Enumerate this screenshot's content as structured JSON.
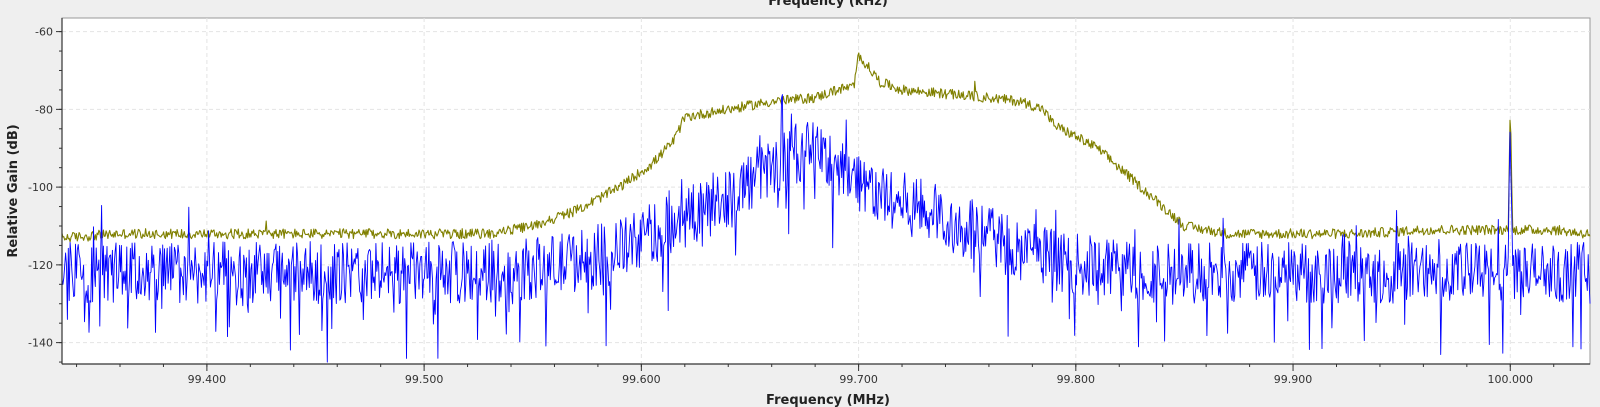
{
  "chart_data": {
    "type": "line",
    "title": "",
    "top_axis_label": "Frequency (kHz)",
    "xlabel": "Frequency (MHz)",
    "ylabel": "Relative Gain (dB)",
    "xlim": [
      99.3333,
      100.0367
    ],
    "ylim": [
      -145.5,
      -56.5
    ],
    "grid": true,
    "x_ticks": [
      99.4,
      99.5,
      99.6,
      99.7,
      99.8,
      99.9,
      100.0
    ],
    "x_tick_labels": [
      "99.400",
      "99.500",
      "99.600",
      "99.700",
      "99.800",
      "99.900",
      "100.000"
    ],
    "y_ticks": [
      -60,
      -80,
      -100,
      -120,
      -140
    ],
    "y_tick_labels": [
      "-60",
      "-80",
      "-100",
      "-120",
      "-140"
    ],
    "series": [
      {
        "color": "#808000",
        "x": [
          99.335,
          99.36,
          99.4,
          99.43,
          99.46,
          99.5,
          99.53,
          99.55,
          99.57,
          99.59,
          99.605,
          99.615,
          99.62,
          99.64,
          99.66,
          99.68,
          99.69,
          99.698,
          99.7,
          99.71,
          99.72,
          99.74,
          99.76,
          99.775,
          99.785,
          99.79,
          99.8,
          99.81,
          99.82,
          99.83,
          99.84,
          99.85,
          99.87,
          99.9,
          99.93,
          99.96,
          99.98,
          99.999,
          100.0,
          100.001,
          100.02,
          100.035
        ],
        "values": [
          -113,
          -112,
          -112,
          -112,
          -112,
          -112,
          -112,
          -110,
          -106,
          -100,
          -94,
          -88,
          -82,
          -80,
          -78,
          -77,
          -75,
          -74,
          -66,
          -73,
          -75,
          -76,
          -77,
          -78,
          -80,
          -84,
          -87,
          -90,
          -95,
          -100,
          -105,
          -110,
          -112,
          -112,
          -112,
          -111,
          -111,
          -111,
          -78,
          -111,
          -111,
          -112
        ]
      },
      {
        "color": "#0000ff",
        "x": [
          99.335,
          99.36,
          99.4,
          99.43,
          99.46,
          99.5,
          99.53,
          99.55,
          99.57,
          99.59,
          99.605,
          99.62,
          99.64,
          99.66,
          99.675,
          99.69,
          99.7,
          99.71,
          99.72,
          99.74,
          99.76,
          99.78,
          99.8,
          99.82,
          99.84,
          99.87,
          99.9,
          99.93,
          99.96,
          99.98,
          99.999,
          100.0,
          100.001,
          100.02,
          100.035
        ],
        "values": [
          -122,
          -122,
          -122,
          -122,
          -122,
          -122,
          -122,
          -121,
          -119,
          -116,
          -112,
          -108,
          -102,
          -95,
          -90,
          -94,
          -98,
          -102,
          -104,
          -108,
          -113,
          -117,
          -120,
          -121,
          -122,
          -122,
          -122,
          -122,
          -122,
          -122,
          -122,
          -80,
          -122,
          -122,
          -122
        ]
      }
    ]
  }
}
